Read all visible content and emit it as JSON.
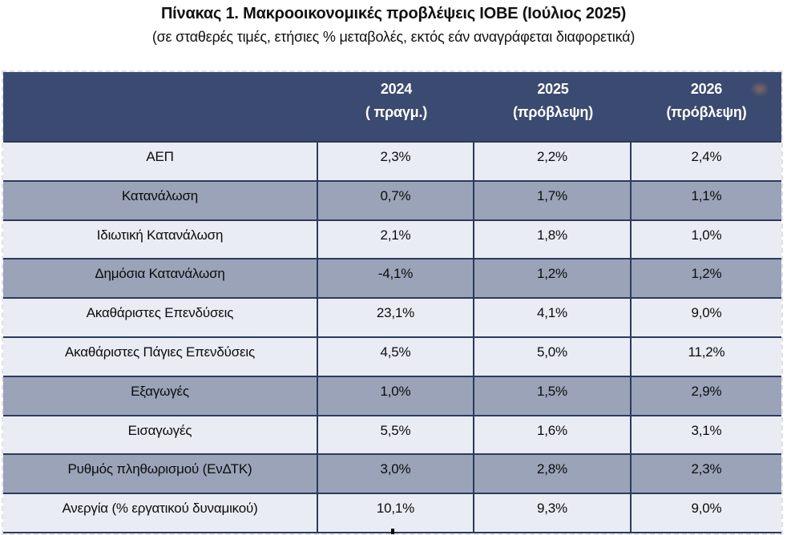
{
  "title": "Πίνακας 1. Μακροοικονομικές προβλέψεις ΙΟΒΕ (Ιούλιος 2025)",
  "subtitle": "(σε σταθερές τιμές, ετήσιες % μεταβολές, εκτός εάν αναγράφεται διαφορετικά)",
  "colors": {
    "header_bg": "#3B4A70",
    "band_dark": "#9AA3B8",
    "band_light": "#EAECF3",
    "grid_border": "#2B3A5E",
    "header_text": "#FFFFFF",
    "body_text": "#0C0C0C",
    "selection_dash": "#DDE0E6"
  },
  "table": {
    "headers": [
      {
        "year": "2024",
        "note": "( πραγμ.)"
      },
      {
        "year": "2025",
        "note": "(πρόβλεψη)"
      },
      {
        "year": "2026",
        "note": "(πρόβλεψη)"
      }
    ],
    "rows": [
      {
        "label": "ΑΕΠ",
        "values": [
          "2,3%",
          "2,2%",
          "2,4%"
        ]
      },
      {
        "label": "Κατανάλωση",
        "values": [
          "0,7%",
          "1,7%",
          "1,1%"
        ]
      },
      {
        "label": "Ιδιωτική Κατανάλωση",
        "values": [
          "2,1%",
          "1,8%",
          "1,0%"
        ]
      },
      {
        "label": "Δημόσια Κατανάλωση",
        "values": [
          "-4,1%",
          "1,2%",
          "1,2%"
        ]
      },
      {
        "label": "Ακαθάριστες Επενδύσεις",
        "values": [
          "23,1%",
          "4,1%",
          "9,0%"
        ]
      },
      {
        "label": "Ακαθάριστες Πάγιες Επενδύσεις",
        "values": [
          "4,5%",
          "5,0%",
          "11,2%"
        ]
      },
      {
        "label": "Εξαγωγές",
        "values": [
          "1,0%",
          "1,5%",
          "2,9%"
        ]
      },
      {
        "label": "Εισαγωγές",
        "values": [
          "5,5%",
          "1,6%",
          "3,1%"
        ]
      },
      {
        "label": "Ρυθμός πληθωρισμού (ΕνΔΤΚ)",
        "values": [
          "3,0%",
          "2,8%",
          "2,3%"
        ]
      },
      {
        "label": "Ανεργία (% εργατικού δυναμικού)",
        "values": [
          "10,1%",
          "9,3%",
          "9,0%"
        ]
      }
    ]
  }
}
